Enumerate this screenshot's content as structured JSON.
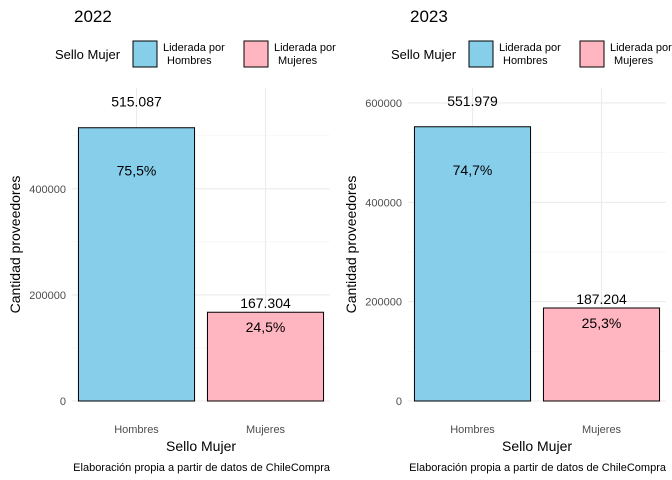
{
  "chart_data": [
    {
      "type": "bar",
      "title": "2022",
      "xlabel": "Sello Mujer",
      "ylabel": "Cantidad proveedores",
      "caption": "Elaboración propia a partir de datos de ChileCompra",
      "legend": {
        "title": "Sello Mujer",
        "position": "top",
        "entries": [
          {
            "label_lines": [
              "Liderada por",
              "Hombres"
            ],
            "color": "#87CEEB"
          },
          {
            "label_lines": [
              "Liderada por",
              "Mujeres"
            ],
            "color": "#FFB6C1"
          }
        ]
      },
      "categories": [
        "Hombres",
        "Mujeres"
      ],
      "values": [
        515087,
        167304
      ],
      "value_labels": [
        "515.087",
        "167.304"
      ],
      "percent_labels": [
        "75,5%",
        "24,5%"
      ],
      "colors": [
        "#87CEEB",
        "#FFB6C1"
      ],
      "ylim": [
        0,
        590000
      ],
      "yticks": [
        0,
        200000,
        400000
      ],
      "grid": true
    },
    {
      "type": "bar",
      "title": "2023",
      "xlabel": "Sello Mujer",
      "ylabel": "Cantidad proveedores",
      "caption": "Elaboración propia a partir de datos de ChileCompra",
      "legend": {
        "title": "Sello Mujer",
        "position": "top",
        "entries": [
          {
            "label_lines": [
              "Liderada por",
              "Hombres"
            ],
            "color": "#87CEEB"
          },
          {
            "label_lines": [
              "Liderada por",
              "Mujeres"
            ],
            "color": "#FFB6C1"
          }
        ]
      },
      "categories": [
        "Hombres",
        "Mujeres"
      ],
      "values": [
        551979,
        187204
      ],
      "value_labels": [
        "551.979",
        "187.204"
      ],
      "percent_labels": [
        "74,7%",
        "25,3%"
      ],
      "colors": [
        "#87CEEB",
        "#FFB6C1"
      ],
      "ylim": [
        0,
        630000
      ],
      "yticks": [
        0,
        200000,
        400000,
        600000
      ],
      "grid": true
    }
  ]
}
